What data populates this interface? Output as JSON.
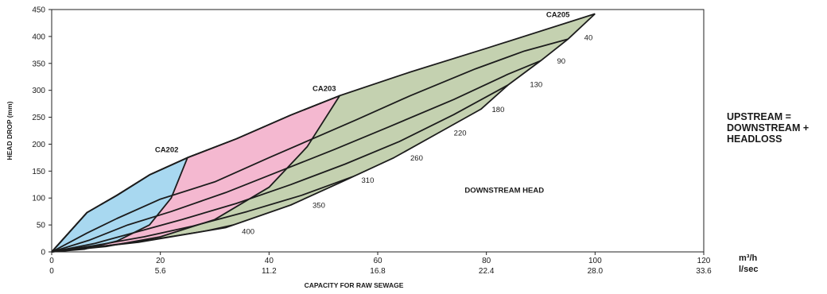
{
  "note": {
    "lines": [
      "UPSTREAM =",
      "DOWNSTREAM +",
      "HEADLOSS"
    ]
  },
  "chart_data": {
    "type": "area",
    "xlabel": "CAPACITY FOR RAW SEWAGE",
    "ylabel": "HEAD DROP (mm)",
    "xlim": [
      0,
      120
    ],
    "ylim": [
      0,
      450
    ],
    "x_ticks": [
      0,
      20,
      40,
      60,
      80,
      100,
      120
    ],
    "y_ticks": [
      0,
      50,
      100,
      150,
      200,
      250,
      300,
      350,
      400,
      450
    ],
    "x_unit_primary": "m³/h",
    "x_unit_secondary": "l/sec",
    "x_ticks_secondary": [
      "0",
      "5.6",
      "11.2",
      "16.8",
      "22.4",
      "28.0",
      "33.6"
    ],
    "grid": false,
    "annotation": "DOWNSTREAM HEAD",
    "region_colors": {
      "CA202": "#a8d8f0",
      "CA203": "#f4b8d0",
      "CA205": "#c4d1b0"
    },
    "series": [
      {
        "name": "CA202",
        "kind": "model_outline",
        "upper": [
          [
            0,
            0
          ],
          [
            6.5,
            73
          ],
          [
            12,
            105
          ],
          [
            18,
            143
          ],
          [
            25,
            175
          ]
        ],
        "lower": [
          [
            0,
            0
          ],
          [
            6,
            5
          ],
          [
            12,
            20
          ],
          [
            18,
            50
          ],
          [
            22,
            100
          ],
          [
            25,
            175
          ]
        ]
      },
      {
        "name": "CA203",
        "kind": "model_outline",
        "upper": [
          [
            0,
            0
          ],
          [
            6.5,
            73
          ],
          [
            12,
            105
          ],
          [
            18,
            143
          ],
          [
            25,
            175
          ],
          [
            34,
            210
          ],
          [
            44,
            254
          ],
          [
            53,
            290
          ]
        ],
        "lower": [
          [
            0,
            0
          ],
          [
            10,
            10
          ],
          [
            20,
            28
          ],
          [
            30,
            60
          ],
          [
            40,
            120
          ],
          [
            47,
            195
          ],
          [
            53,
            290
          ]
        ]
      },
      {
        "name": "CA205",
        "kind": "model_outline",
        "upper": [
          [
            0,
            0
          ],
          [
            6.5,
            73
          ],
          [
            12,
            105
          ],
          [
            18,
            143
          ],
          [
            25,
            175
          ],
          [
            34,
            210
          ],
          [
            44,
            254
          ],
          [
            53,
            290
          ],
          [
            66,
            334
          ],
          [
            80,
            378
          ],
          [
            100,
            442
          ]
        ],
        "lower": [
          [
            0,
            0
          ],
          [
            16,
            18
          ],
          [
            32,
            45
          ],
          [
            44,
            87
          ],
          [
            54,
            133
          ],
          [
            63,
            175
          ],
          [
            71,
            220
          ],
          [
            79,
            265
          ],
          [
            84,
            310
          ],
          [
            90,
            355
          ],
          [
            95,
            395
          ],
          [
            100,
            442
          ]
        ]
      },
      {
        "name": "40",
        "kind": "downstream_head",
        "points": [
          [
            0,
            0
          ],
          [
            6.5,
            35
          ],
          [
            12,
            62
          ],
          [
            20,
            98
          ],
          [
            30,
            130
          ],
          [
            40,
            175
          ],
          [
            48,
            210
          ],
          [
            56,
            245
          ],
          [
            66,
            290
          ],
          [
            78,
            340
          ],
          [
            87,
            373
          ],
          [
            95,
            395
          ]
        ]
      },
      {
        "name": "90",
        "kind": "downstream_head",
        "points": [
          [
            0,
            0
          ],
          [
            7,
            22
          ],
          [
            14,
            50
          ],
          [
            22,
            75
          ],
          [
            32,
            110
          ],
          [
            42,
            150
          ],
          [
            52,
            190
          ],
          [
            62,
            232
          ],
          [
            74,
            283
          ],
          [
            84,
            330
          ],
          [
            90,
            355
          ]
        ]
      },
      {
        "name": "130",
        "kind": "downstream_head",
        "points": [
          [
            0,
            0
          ],
          [
            8,
            16
          ],
          [
            16,
            38
          ],
          [
            24,
            60
          ],
          [
            34,
            90
          ],
          [
            44,
            125
          ],
          [
            54,
            163
          ],
          [
            64,
            205
          ],
          [
            74,
            255
          ],
          [
            84,
            310
          ]
        ]
      },
      {
        "name": "180",
        "kind": "downstream_head",
        "points": [
          [
            0,
            0
          ],
          [
            8,
            12
          ],
          [
            17,
            28
          ],
          [
            26,
            48
          ],
          [
            36,
            75
          ],
          [
            46,
            105
          ],
          [
            56,
            142
          ],
          [
            66,
            185
          ],
          [
            74,
            222
          ],
          [
            79,
            265
          ]
        ]
      },
      {
        "name": "220",
        "kind": "downstream_head",
        "points": [
          [
            0,
            0
          ],
          [
            9,
            10
          ],
          [
            18,
            22
          ],
          [
            28,
            38
          ],
          [
            38,
            60
          ],
          [
            48,
            88
          ],
          [
            58,
            120
          ],
          [
            66,
            158
          ],
          [
            71,
            220
          ]
        ]
      },
      {
        "name": "260",
        "kind": "downstream_head",
        "points": [
          [
            0,
            0
          ],
          [
            9,
            8
          ],
          [
            19,
            18
          ],
          [
            30,
            32
          ],
          [
            40,
            50
          ],
          [
            50,
            75
          ],
          [
            57,
            105
          ],
          [
            63,
            175
          ]
        ]
      },
      {
        "name": "310",
        "kind": "downstream_head",
        "points": [
          [
            0,
            0
          ],
          [
            10,
            7
          ],
          [
            20,
            15
          ],
          [
            30,
            26
          ],
          [
            40,
            40
          ],
          [
            48,
            62
          ],
          [
            54,
            133
          ]
        ]
      },
      {
        "name": "350",
        "kind": "downstream_head",
        "points": [
          [
            0,
            0
          ],
          [
            10,
            5
          ],
          [
            20,
            12
          ],
          [
            30,
            21
          ],
          [
            38,
            35
          ],
          [
            44,
            87
          ]
        ]
      },
      {
        "name": "400",
        "kind": "downstream_head",
        "points": [
          [
            0,
            0
          ],
          [
            10,
            4
          ],
          [
            20,
            9
          ],
          [
            26,
            16
          ],
          [
            32,
            45
          ]
        ]
      }
    ],
    "labels": [
      {
        "text": "CA202",
        "x": 19,
        "y": 185,
        "role": "model"
      },
      {
        "text": "CA203",
        "x": 48,
        "y": 299,
        "role": "model"
      },
      {
        "text": "CA205",
        "x": 91,
        "y": 436,
        "role": "model"
      },
      {
        "text": "40",
        "x": 98,
        "y": 393,
        "role": "curve"
      },
      {
        "text": "90",
        "x": 93,
        "y": 350,
        "role": "curve"
      },
      {
        "text": "130",
        "x": 88,
        "y": 306,
        "role": "curve"
      },
      {
        "text": "180",
        "x": 81,
        "y": 260,
        "role": "curve"
      },
      {
        "text": "220",
        "x": 74,
        "y": 216,
        "role": "curve"
      },
      {
        "text": "260",
        "x": 66,
        "y": 170,
        "role": "curve"
      },
      {
        "text": "310",
        "x": 57,
        "y": 128,
        "role": "curve"
      },
      {
        "text": "350",
        "x": 48,
        "y": 82,
        "role": "curve"
      },
      {
        "text": "400",
        "x": 35,
        "y": 33,
        "role": "curve"
      },
      {
        "text": "DOWNSTREAM HEAD",
        "x": 76,
        "y": 110,
        "role": "annotation"
      }
    ]
  }
}
